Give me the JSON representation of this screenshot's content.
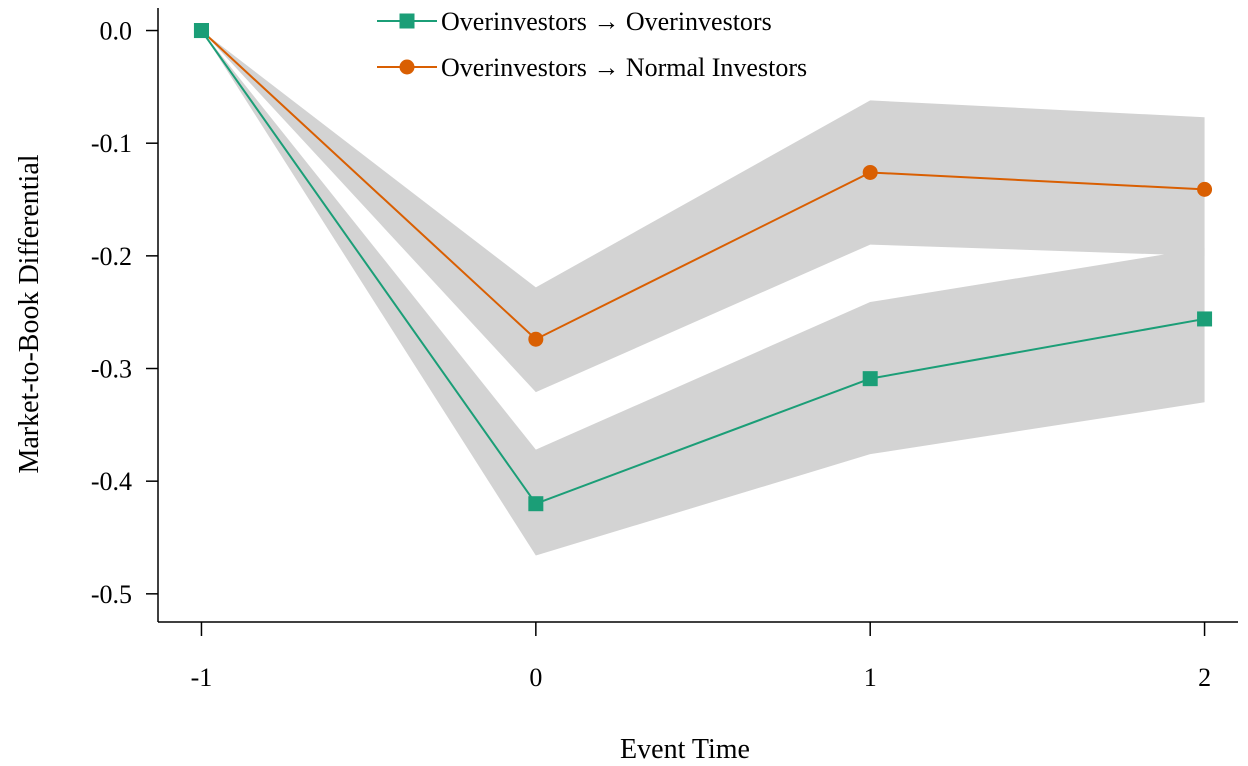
{
  "chart_data": {
    "type": "line",
    "xlabel": "Event Time",
    "ylabel": "Market-to-Book Differential",
    "x": [
      -1,
      0,
      1,
      2
    ],
    "xticks": [
      "-1",
      "0",
      "1",
      "2"
    ],
    "yticks": [
      "0.0",
      "-0.1",
      "-0.2",
      "-0.3",
      "-0.4",
      "-0.5"
    ],
    "ytick_values": [
      0,
      -0.1,
      -0.2,
      -0.3,
      -0.4,
      -0.5
    ],
    "ylim": [
      -0.525,
      0.02
    ],
    "xlim": [
      -1.13,
      2.1
    ],
    "grid": false,
    "legend_position": "top-center",
    "series": [
      {
        "name": "Overinvestors → Overinvestors",
        "marker": "square",
        "color": "#1b9e77",
        "values": [
          0,
          -0.42,
          -0.309,
          -0.256
        ],
        "ci_lower": [
          0,
          -0.466,
          -0.376,
          -0.33
        ],
        "ci_upper": [
          0,
          -0.372,
          -0.241,
          -0.193
        ]
      },
      {
        "name": "Overinvestors → Normal Investors",
        "marker": "circle",
        "color": "#d95f02",
        "values": [
          0,
          -0.274,
          -0.126,
          -0.141
        ],
        "ci_lower": [
          0,
          -0.321,
          -0.19,
          -0.2
        ],
        "ci_upper": [
          0,
          -0.228,
          -0.062,
          -0.077
        ]
      }
    ],
    "band_color": "#d3d3d3"
  }
}
